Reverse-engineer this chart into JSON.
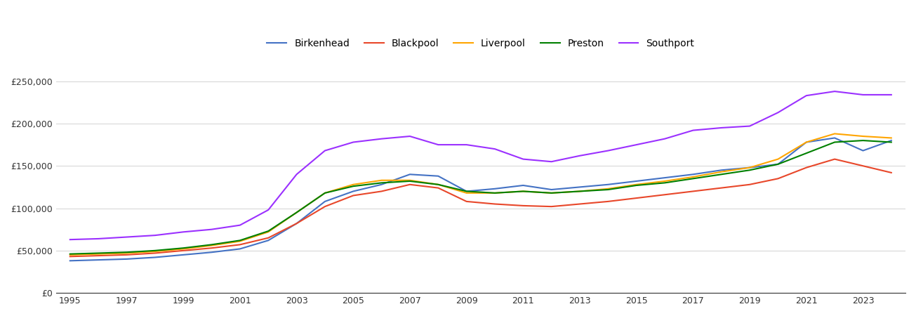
{
  "series": {
    "Birkenhead": {
      "color": "#4472C4",
      "years": [
        1995,
        1996,
        1997,
        1998,
        1999,
        2000,
        2001,
        2002,
        2003,
        2004,
        2005,
        2006,
        2007,
        2008,
        2009,
        2010,
        2011,
        2012,
        2013,
        2014,
        2015,
        2016,
        2017,
        2018,
        2019,
        2020,
        2021,
        2022,
        2023,
        2024
      ],
      "values": [
        38000,
        39000,
        40000,
        42000,
        45000,
        48000,
        52000,
        62000,
        82000,
        108000,
        120000,
        128000,
        140000,
        138000,
        120000,
        123000,
        127000,
        122000,
        125000,
        128000,
        132000,
        136000,
        140000,
        145000,
        148000,
        152000,
        178000,
        183000,
        168000,
        180000
      ]
    },
    "Blackpool": {
      "color": "#E8472A",
      "years": [
        1995,
        1996,
        1997,
        1998,
        1999,
        2000,
        2001,
        2002,
        2003,
        2004,
        2005,
        2006,
        2007,
        2008,
        2009,
        2010,
        2011,
        2012,
        2013,
        2014,
        2015,
        2016,
        2017,
        2018,
        2019,
        2020,
        2021,
        2022,
        2023,
        2024
      ],
      "values": [
        43000,
        44000,
        45000,
        47000,
        50000,
        53000,
        57000,
        65000,
        82000,
        102000,
        115000,
        120000,
        128000,
        124000,
        108000,
        105000,
        103000,
        102000,
        105000,
        108000,
        112000,
        116000,
        120000,
        124000,
        128000,
        135000,
        148000,
        158000,
        150000,
        142000
      ]
    },
    "Liverpool": {
      "color": "#FFA500",
      "years": [
        1995,
        1996,
        1997,
        1998,
        1999,
        2000,
        2001,
        2002,
        2003,
        2004,
        2005,
        2006,
        2007,
        2008,
        2009,
        2010,
        2011,
        2012,
        2013,
        2014,
        2015,
        2016,
        2017,
        2018,
        2019,
        2020,
        2021,
        2022,
        2023,
        2024
      ],
      "values": [
        45000,
        46000,
        47000,
        49000,
        52000,
        56000,
        61000,
        72000,
        95000,
        118000,
        128000,
        133000,
        133000,
        128000,
        118000,
        118000,
        120000,
        118000,
        120000,
        123000,
        128000,
        132000,
        137000,
        143000,
        148000,
        158000,
        178000,
        188000,
        185000,
        183000
      ]
    },
    "Preston": {
      "color": "#008000",
      "years": [
        1995,
        1996,
        1997,
        1998,
        1999,
        2000,
        2001,
        2002,
        2003,
        2004,
        2005,
        2006,
        2007,
        2008,
        2009,
        2010,
        2011,
        2012,
        2013,
        2014,
        2015,
        2016,
        2017,
        2018,
        2019,
        2020,
        2021,
        2022,
        2023,
        2024
      ],
      "values": [
        46000,
        47000,
        48000,
        50000,
        53000,
        57000,
        62000,
        73000,
        95000,
        118000,
        126000,
        130000,
        132000,
        128000,
        120000,
        118000,
        120000,
        118000,
        120000,
        122000,
        127000,
        130000,
        135000,
        140000,
        145000,
        152000,
        165000,
        178000,
        180000,
        178000
      ]
    },
    "Southport": {
      "color": "#9B30FF",
      "years": [
        1995,
        1996,
        1997,
        1998,
        1999,
        2000,
        2001,
        2002,
        2003,
        2004,
        2005,
        2006,
        2007,
        2008,
        2009,
        2010,
        2011,
        2012,
        2013,
        2014,
        2015,
        2016,
        2017,
        2018,
        2019,
        2020,
        2021,
        2022,
        2023,
        2024
      ],
      "values": [
        63000,
        64000,
        66000,
        68000,
        72000,
        75000,
        80000,
        98000,
        140000,
        168000,
        178000,
        182000,
        185000,
        175000,
        175000,
        170000,
        158000,
        155000,
        162000,
        168000,
        175000,
        182000,
        192000,
        195000,
        197000,
        213000,
        233000,
        238000,
        234000,
        234000
      ]
    }
  },
  "xlim": [
    1994.5,
    2024.5
  ],
  "ylim": [
    0,
    270000
  ],
  "yticks": [
    0,
    50000,
    100000,
    150000,
    200000,
    250000
  ],
  "xticks": [
    1995,
    1997,
    1999,
    2001,
    2003,
    2005,
    2007,
    2009,
    2011,
    2013,
    2015,
    2017,
    2019,
    2021,
    2023
  ],
  "background_color": "#ffffff",
  "plot_bg_color": "#ffffff",
  "grid_color": "#d8d8d8",
  "legend_order": [
    "Birkenhead",
    "Blackpool",
    "Liverpool",
    "Preston",
    "Southport"
  ]
}
